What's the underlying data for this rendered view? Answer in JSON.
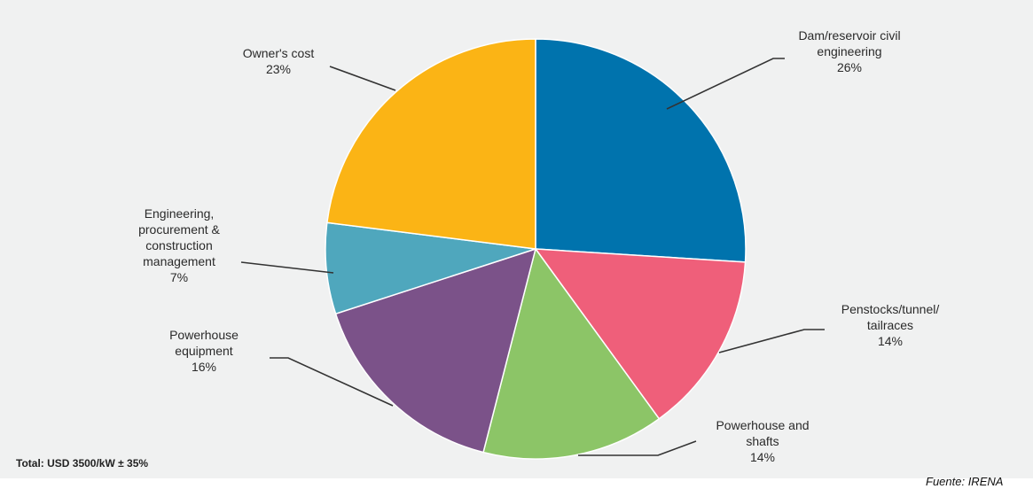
{
  "chart_data": {
    "type": "pie",
    "slices": [
      {
        "label": "Dam/reservoir civil engineering",
        "label_lines": [
          "Dam/reservoir civil",
          "engineering"
        ],
        "value": 26,
        "value_text": "26%",
        "color": "#0073ad"
      },
      {
        "label": "Penstocks/tunnel/ tailraces",
        "label_lines": [
          "Penstocks/tunnel/",
          "tailraces"
        ],
        "value": 14,
        "value_text": "14%",
        "color": "#ef5f7a"
      },
      {
        "label": "Powerhouse and shafts",
        "label_lines": [
          "Powerhouse and",
          "shafts"
        ],
        "value": 14,
        "value_text": "14%",
        "color": "#8cc567"
      },
      {
        "label": "Powerhouse equipment",
        "label_lines": [
          "Powerhouse",
          "equipment"
        ],
        "value": 16,
        "value_text": "16%",
        "color": "#7b5289"
      },
      {
        "label": "Engineering, procurement & construction management",
        "label_lines": [
          "Engineering,",
          "procurement &",
          "construction",
          "management"
        ],
        "value": 7,
        "value_text": "7%",
        "color": "#4fa7bd"
      },
      {
        "label": "Owner's cost",
        "label_lines": [
          "Owner's cost"
        ],
        "value": 23,
        "value_text": "23%",
        "color": "#fbb415"
      }
    ],
    "total_note": "Total: USD 3500/kW ± 35%"
  },
  "source": "Fuente: IRENA"
}
